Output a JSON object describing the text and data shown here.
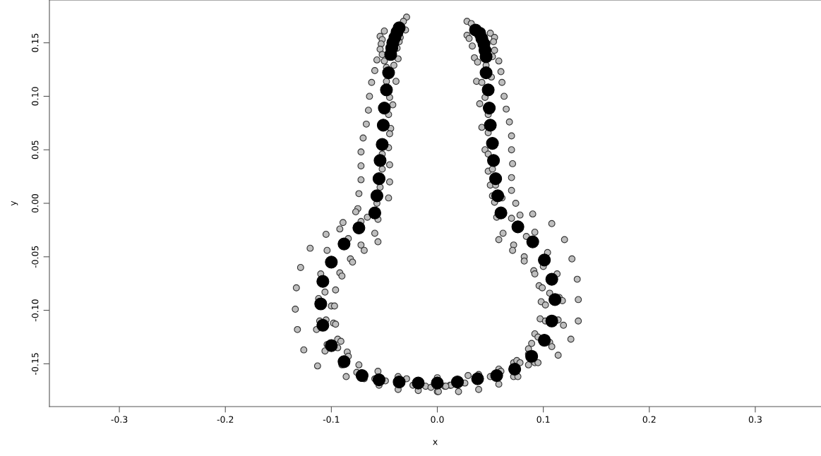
{
  "chart_data": {
    "type": "scatter",
    "xlabel": "x",
    "ylabel": "y",
    "marker": "circle",
    "grid": false,
    "legend": false,
    "xlim": [
      -0.366,
      0.362
    ],
    "ylim": [
      -0.19,
      0.19
    ],
    "xticks": [
      {
        "value": -0.3,
        "label": "-0.3"
      },
      {
        "value": -0.2,
        "label": "-0.2"
      },
      {
        "value": -0.1,
        "label": "-0.1"
      },
      {
        "value": 0,
        "label": "0.0"
      },
      {
        "value": 0.1,
        "label": "0.1"
      },
      {
        "value": 0.2,
        "label": "0.2"
      },
      {
        "value": 0.3,
        "label": "0.3"
      }
    ],
    "yticks": [
      {
        "value": -0.15,
        "label": "-0.15"
      },
      {
        "value": -0.1,
        "label": "-0.10"
      },
      {
        "value": -0.05,
        "label": "-0.05"
      },
      {
        "value": 0,
        "label": "0.00"
      },
      {
        "value": 0.05,
        "label": "0.05"
      },
      {
        "value": 0.1,
        "label": "0.10"
      },
      {
        "value": 0.15,
        "label": "0.15"
      }
    ],
    "series": [
      {
        "color": "#bebebe",
        "x": [
          -0.029,
          -0.032,
          -0.03,
          -0.05,
          -0.054,
          -0.052,
          -0.053,
          -0.054,
          -0.052,
          -0.035,
          -0.036,
          -0.038,
          -0.057,
          -0.05,
          -0.037,
          -0.041,
          -0.059,
          -0.048,
          -0.062,
          -0.048,
          -0.039,
          -0.064,
          -0.045,
          -0.042,
          -0.065,
          -0.046,
          -0.067,
          -0.044,
          -0.07,
          -0.045,
          0.028,
          0.032,
          0.028,
          0.03,
          0.033,
          0.05,
          0.054,
          0.053,
          0.054,
          0.052,
          0.035,
          0.038,
          0.046,
          0.058,
          0.06,
          0.037,
          0.042,
          0.051,
          0.061,
          0.045,
          0.063,
          0.04,
          0.065,
          0.048,
          0.042,
          0.068,
          0.048,
          0.07,
          -0.072,
          -0.046,
          -0.052,
          -0.072,
          -0.045,
          -0.052,
          -0.072,
          -0.045,
          -0.054,
          -0.074,
          -0.046,
          -0.057,
          -0.075,
          -0.077,
          -0.066,
          -0.056,
          -0.072,
          -0.089,
          -0.092,
          -0.059,
          -0.084,
          -0.105,
          -0.056,
          -0.072,
          -0.069,
          -0.12,
          -0.104,
          -0.082,
          -0.08,
          -0.129,
          -0.11,
          -0.092,
          -0.09,
          0.045,
          0.07,
          0.048,
          0.071,
          0.048,
          0.052,
          0.07,
          0.05,
          0.055,
          0.07,
          0.052,
          0.061,
          0.054,
          0.074,
          0.056,
          0.07,
          0.078,
          0.09,
          0.108,
          0.062,
          0.092,
          0.058,
          0.084,
          0.072,
          0.12,
          0.071,
          0.104,
          0.082,
          0.082,
          0.127,
          0.1,
          0.091,
          0.092,
          0.113,
          0.132,
          -0.133,
          -0.106,
          -0.096,
          -0.112,
          -0.1,
          -0.097,
          -0.134,
          -0.111,
          -0.105,
          -0.098,
          -0.096,
          -0.114,
          -0.132,
          -0.094,
          -0.091,
          -0.104,
          -0.094,
          -0.106,
          -0.126,
          -0.085,
          -0.084,
          -0.09,
          -0.113,
          -0.086,
          -0.074,
          -0.076,
          -0.069,
          -0.056,
          -0.059,
          -0.055,
          -0.049,
          -0.037,
          -0.029,
          -0.037,
          -0.023,
          -0.018,
          -0.011,
          -0.006,
          0.0,
          0.0,
          0.007,
          0.012,
          0.096,
          0.099,
          0.106,
          0.115,
          0.118,
          0.133,
          0.098,
          0.102,
          0.097,
          0.102,
          0.114,
          0.119,
          0.133,
          0.092,
          0.095,
          0.126,
          0.106,
          0.108,
          0.089,
          0.086,
          0.086,
          0.114,
          0.086,
          0.092,
          0.095,
          0.072,
          0.075,
          0.078,
          0.058,
          0.06,
          0.05,
          0.072,
          0.076,
          0.058,
          0.039,
          0.029,
          0.039,
          0.026,
          0.02,
          0.013,
          0.008,
          0.001
        ],
        "values": [
          0.174,
          0.17,
          0.162,
          0.161,
          0.156,
          0.153,
          0.149,
          0.144,
          0.139,
          0.155,
          0.151,
          0.145,
          0.134,
          0.133,
          0.135,
          0.129,
          0.124,
          0.127,
          0.113,
          0.114,
          0.114,
          0.1,
          0.099,
          0.092,
          0.087,
          0.083,
          0.074,
          0.07,
          0.061,
          0.065,
          0.17,
          0.168,
          0.157,
          0.154,
          0.147,
          0.159,
          0.155,
          0.151,
          0.143,
          0.137,
          0.136,
          0.132,
          0.129,
          0.133,
          0.123,
          0.114,
          0.113,
          0.118,
          0.113,
          0.099,
          0.1,
          0.093,
          0.088,
          0.083,
          0.071,
          0.076,
          0.066,
          0.063,
          0.048,
          0.052,
          0.046,
          0.035,
          0.036,
          0.032,
          0.022,
          0.02,
          0.015,
          0.009,
          0.005,
          0.0,
          -0.005,
          -0.008,
          -0.013,
          -0.015,
          -0.017,
          -0.018,
          -0.024,
          -0.028,
          -0.033,
          -0.029,
          -0.036,
          -0.039,
          -0.044,
          -0.042,
          -0.044,
          -0.052,
          -0.055,
          -0.06,
          -0.066,
          -0.065,
          -0.068,
          0.05,
          0.05,
          0.046,
          0.037,
          0.03,
          0.032,
          0.024,
          0.017,
          0.017,
          0.012,
          0.007,
          0.005,
          0.001,
          0.0,
          -0.013,
          -0.014,
          -0.011,
          -0.01,
          -0.019,
          -0.028,
          -0.027,
          -0.034,
          -0.031,
          -0.039,
          -0.034,
          -0.044,
          -0.046,
          -0.05,
          -0.054,
          -0.052,
          -0.059,
          -0.063,
          -0.066,
          -0.066,
          -0.071,
          -0.079,
          -0.083,
          -0.081,
          -0.089,
          -0.096,
          -0.096,
          -0.099,
          -0.11,
          -0.109,
          -0.112,
          -0.113,
          -0.118,
          -0.118,
          -0.127,
          -0.129,
          -0.132,
          -0.135,
          -0.138,
          -0.137,
          -0.139,
          -0.143,
          -0.151,
          -0.152,
          -0.162,
          -0.151,
          -0.158,
          -0.164,
          -0.157,
          -0.164,
          -0.17,
          -0.166,
          -0.162,
          -0.164,
          -0.174,
          -0.17,
          -0.175,
          -0.171,
          -0.172,
          -0.163,
          -0.176,
          -0.171,
          -0.17,
          -0.077,
          -0.079,
          -0.084,
          -0.088,
          -0.091,
          -0.09,
          -0.092,
          -0.095,
          -0.108,
          -0.11,
          -0.109,
          -0.114,
          -0.11,
          -0.122,
          -0.125,
          -0.127,
          -0.13,
          -0.134,
          -0.131,
          -0.136,
          -0.141,
          -0.142,
          -0.151,
          -0.149,
          -0.149,
          -0.149,
          -0.147,
          -0.149,
          -0.155,
          -0.157,
          -0.162,
          -0.162,
          -0.162,
          -0.169,
          -0.16,
          -0.161,
          -0.174,
          -0.168,
          -0.176,
          -0.17,
          -0.171,
          -0.176
        ]
      },
      {
        "color": "#000000",
        "x": [
          -0.036,
          -0.038,
          -0.04,
          -0.042,
          -0.043,
          -0.044,
          -0.046,
          -0.048,
          -0.05,
          -0.051,
          -0.052,
          -0.054,
          -0.055,
          -0.057,
          -0.059,
          -0.074,
          -0.088,
          -0.1,
          -0.108,
          -0.11,
          -0.108,
          -0.1,
          -0.088,
          -0.071,
          -0.055,
          -0.036,
          -0.018,
          0.0,
          0.019,
          0.038,
          0.056,
          0.073,
          0.089,
          0.101,
          0.108,
          0.111,
          0.108,
          0.101,
          0.09,
          0.076,
          0.06,
          0.057,
          0.055,
          0.053,
          0.052,
          0.05,
          0.049,
          0.048,
          0.046,
          0.046,
          0.045,
          0.044,
          0.042,
          0.04,
          0.036
        ],
        "values": [
          0.164,
          0.16,
          0.155,
          0.15,
          0.145,
          0.139,
          0.122,
          0.106,
          0.089,
          0.073,
          0.055,
          0.04,
          0.023,
          0.007,
          -0.009,
          -0.023,
          -0.038,
          -0.055,
          -0.073,
          -0.094,
          -0.114,
          -0.133,
          -0.148,
          -0.161,
          -0.165,
          -0.167,
          -0.168,
          -0.168,
          -0.167,
          -0.164,
          -0.161,
          -0.155,
          -0.143,
          -0.128,
          -0.11,
          -0.09,
          -0.071,
          -0.053,
          -0.036,
          -0.022,
          -0.009,
          0.007,
          0.023,
          0.04,
          0.056,
          0.073,
          0.089,
          0.106,
          0.122,
          0.137,
          0.143,
          0.149,
          0.154,
          0.159,
          0.162
        ]
      }
    ]
  }
}
